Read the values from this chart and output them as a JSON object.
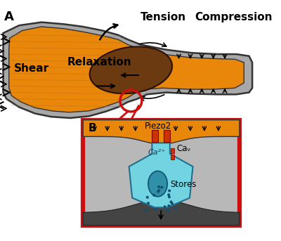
{
  "bg_color": "#ffffff",
  "orange": "#E8870A",
  "brown": "#6B3A10",
  "gray_outer": "#A8A8A8",
  "gray_inner": "#888888",
  "gray_cell": "#B8B8B8",
  "gray_dark": "#444444",
  "red": "#CC1010",
  "cyan": "#72D4E0",
  "cyan_dark": "#3BAABB",
  "black": "#111111",
  "label_A": "A",
  "label_B": "B",
  "text_tension": "Tension",
  "text_compression": "Compression",
  "text_shear": "Shear",
  "text_relaxation": "Relaxation",
  "text_piezo2": "Piezo2",
  "text_ca2plus": "Ca²⁺",
  "text_cav": "Caᵥ",
  "text_stores": "Stores"
}
